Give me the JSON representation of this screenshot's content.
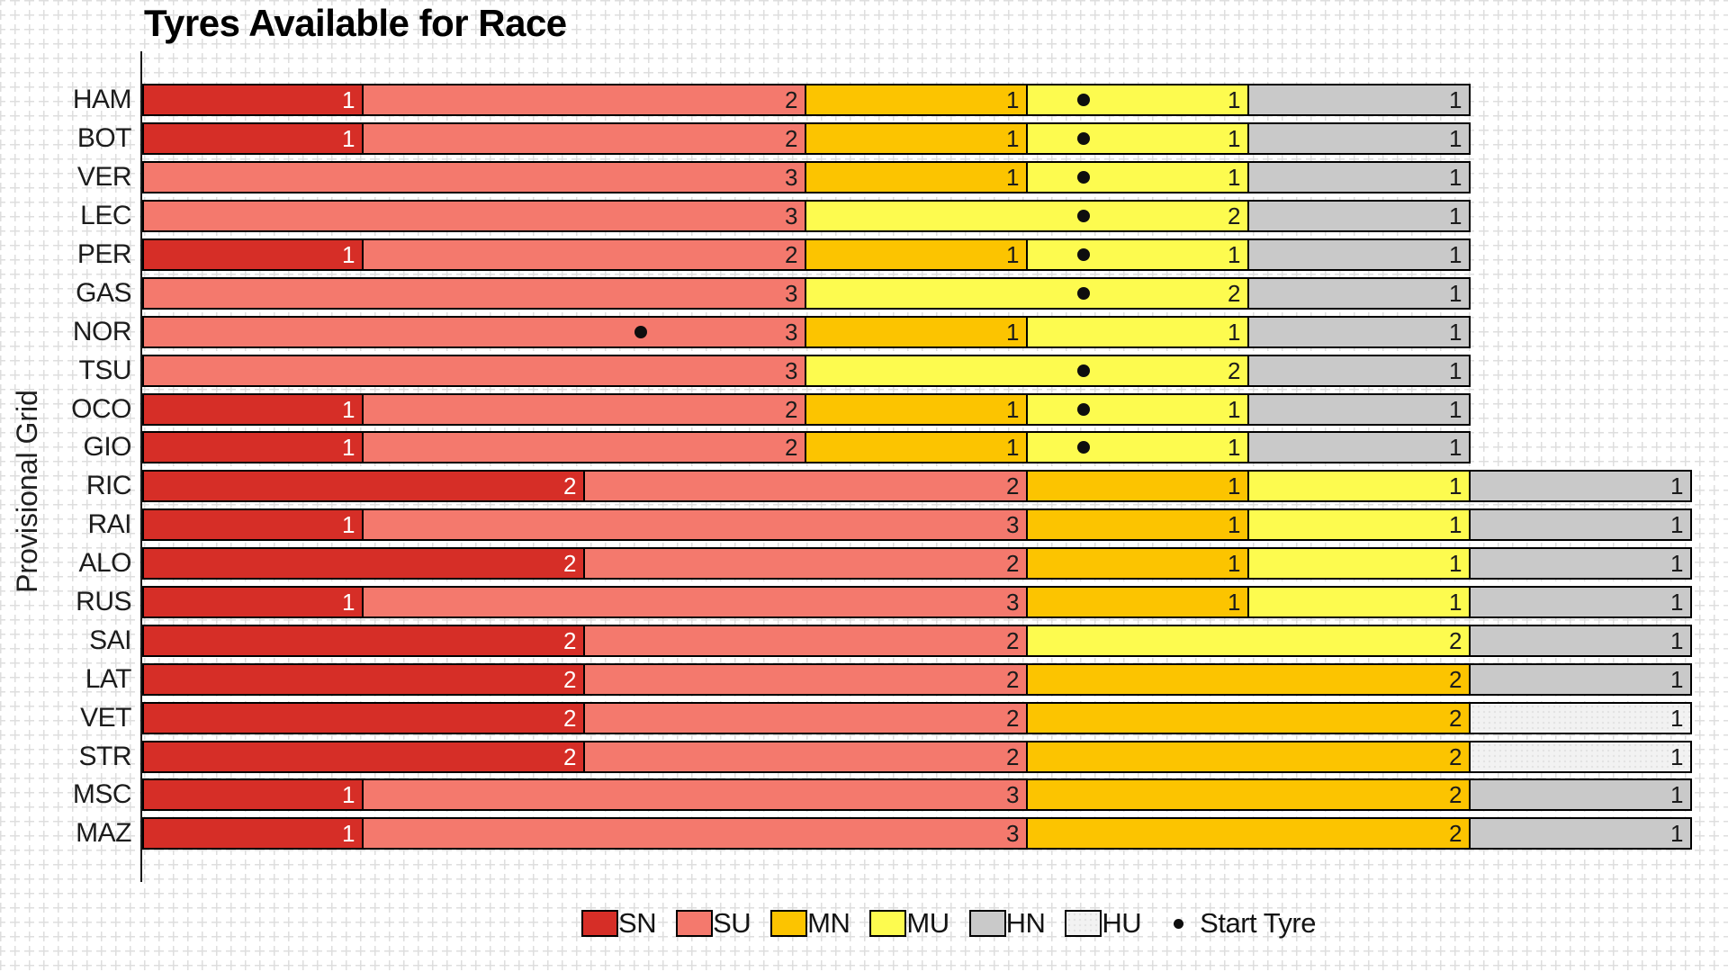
{
  "title": "Tyres Available for Race",
  "y_axis_label": "Provisional Grid",
  "legend": {
    "compound_codes": [
      "SN",
      "SU",
      "MN",
      "MU",
      "HN",
      "HU"
    ],
    "start_tyre_label": "Start Tyre"
  },
  "colors": {
    "SN": "#d62e27",
    "SU": "#f4796d",
    "MN": "#fcc400",
    "MU": "#fdfb4f",
    "HN": "#c9c9c9",
    "HU": "#f2f2f2",
    "bar_border": "#000000",
    "start_dot": "#0e0e0e",
    "grid_pattern": "#dedede"
  },
  "chart_data": {
    "type": "bar",
    "orientation": "horizontal",
    "stacked": true,
    "title": "Tyres Available for Race",
    "ylabel": "Provisional Grid",
    "x_unit": "tyre sets",
    "x_max_units": 7,
    "grid": "dashed-cross background pattern, no axis ticks",
    "legend_position": "bottom center",
    "legend_entries": [
      "SN",
      "SU",
      "MN",
      "MU",
      "HN",
      "HU",
      "Start Tyre"
    ],
    "drivers": [
      {
        "name": "HAM",
        "segments": [
          {
            "compound": "SN",
            "count": 1
          },
          {
            "compound": "SU",
            "count": 2
          },
          {
            "compound": "MN",
            "count": 1
          },
          {
            "compound": "MU",
            "count": 1
          },
          {
            "compound": "HN",
            "count": 1
          }
        ],
        "start_dot": {
          "compound": "MU",
          "x_units": 4.25
        }
      },
      {
        "name": "BOT",
        "segments": [
          {
            "compound": "SN",
            "count": 1
          },
          {
            "compound": "SU",
            "count": 2
          },
          {
            "compound": "MN",
            "count": 1
          },
          {
            "compound": "MU",
            "count": 1
          },
          {
            "compound": "HN",
            "count": 1
          }
        ],
        "start_dot": {
          "compound": "MU",
          "x_units": 4.25
        }
      },
      {
        "name": "VER",
        "segments": [
          {
            "compound": "SU",
            "count": 3
          },
          {
            "compound": "MN",
            "count": 1
          },
          {
            "compound": "MU",
            "count": 1
          },
          {
            "compound": "HN",
            "count": 1
          }
        ],
        "start_dot": {
          "compound": "MU",
          "x_units": 4.25
        }
      },
      {
        "name": "LEC",
        "segments": [
          {
            "compound": "SU",
            "count": 3
          },
          {
            "compound": "MU",
            "count": 2
          },
          {
            "compound": "HN",
            "count": 1
          }
        ],
        "start_dot": {
          "compound": "MU",
          "x_units": 4.25
        }
      },
      {
        "name": "PER",
        "segments": [
          {
            "compound": "SN",
            "count": 1
          },
          {
            "compound": "SU",
            "count": 2
          },
          {
            "compound": "MN",
            "count": 1
          },
          {
            "compound": "MU",
            "count": 1
          },
          {
            "compound": "HN",
            "count": 1
          }
        ],
        "start_dot": {
          "compound": "MU",
          "x_units": 4.25
        }
      },
      {
        "name": "GAS",
        "segments": [
          {
            "compound": "SU",
            "count": 3
          },
          {
            "compound": "MU",
            "count": 2
          },
          {
            "compound": "HN",
            "count": 1
          }
        ],
        "start_dot": {
          "compound": "MU",
          "x_units": 4.25
        }
      },
      {
        "name": "NOR",
        "segments": [
          {
            "compound": "SU",
            "count": 3
          },
          {
            "compound": "MN",
            "count": 1
          },
          {
            "compound": "MU",
            "count": 1
          },
          {
            "compound": "HN",
            "count": 1
          }
        ],
        "start_dot": {
          "compound": "SU",
          "x_units": 2.25
        }
      },
      {
        "name": "TSU",
        "segments": [
          {
            "compound": "SU",
            "count": 3
          },
          {
            "compound": "MU",
            "count": 2
          },
          {
            "compound": "HN",
            "count": 1
          }
        ],
        "start_dot": {
          "compound": "MU",
          "x_units": 4.25
        }
      },
      {
        "name": "OCO",
        "segments": [
          {
            "compound": "SN",
            "count": 1
          },
          {
            "compound": "SU",
            "count": 2
          },
          {
            "compound": "MN",
            "count": 1
          },
          {
            "compound": "MU",
            "count": 1
          },
          {
            "compound": "HN",
            "count": 1
          }
        ],
        "start_dot": {
          "compound": "MU",
          "x_units": 4.25
        }
      },
      {
        "name": "GIO",
        "segments": [
          {
            "compound": "SN",
            "count": 1
          },
          {
            "compound": "SU",
            "count": 2
          },
          {
            "compound": "MN",
            "count": 1
          },
          {
            "compound": "MU",
            "count": 1
          },
          {
            "compound": "HN",
            "count": 1
          }
        ],
        "start_dot": {
          "compound": "MU",
          "x_units": 4.25
        }
      },
      {
        "name": "RIC",
        "segments": [
          {
            "compound": "SN",
            "count": 2
          },
          {
            "compound": "SU",
            "count": 2
          },
          {
            "compound": "MN",
            "count": 1
          },
          {
            "compound": "MU",
            "count": 1
          },
          {
            "compound": "HN",
            "count": 1
          }
        ],
        "start_dot": null
      },
      {
        "name": "RAI",
        "segments": [
          {
            "compound": "SN",
            "count": 1
          },
          {
            "compound": "SU",
            "count": 3
          },
          {
            "compound": "MN",
            "count": 1
          },
          {
            "compound": "MU",
            "count": 1
          },
          {
            "compound": "HN",
            "count": 1
          }
        ],
        "start_dot": null
      },
      {
        "name": "ALO",
        "segments": [
          {
            "compound": "SN",
            "count": 2
          },
          {
            "compound": "SU",
            "count": 2
          },
          {
            "compound": "MN",
            "count": 1
          },
          {
            "compound": "MU",
            "count": 1
          },
          {
            "compound": "HN",
            "count": 1
          }
        ],
        "start_dot": null
      },
      {
        "name": "RUS",
        "segments": [
          {
            "compound": "SN",
            "count": 1
          },
          {
            "compound": "SU",
            "count": 3
          },
          {
            "compound": "MN",
            "count": 1
          },
          {
            "compound": "MU",
            "count": 1
          },
          {
            "compound": "HN",
            "count": 1
          }
        ],
        "start_dot": null
      },
      {
        "name": "SAI",
        "segments": [
          {
            "compound": "SN",
            "count": 2
          },
          {
            "compound": "SU",
            "count": 2
          },
          {
            "compound": "MU",
            "count": 2
          },
          {
            "compound": "HN",
            "count": 1
          }
        ],
        "start_dot": null
      },
      {
        "name": "LAT",
        "segments": [
          {
            "compound": "SN",
            "count": 2
          },
          {
            "compound": "SU",
            "count": 2
          },
          {
            "compound": "MN",
            "count": 2
          },
          {
            "compound": "HN",
            "count": 1
          }
        ],
        "start_dot": null
      },
      {
        "name": "VET",
        "segments": [
          {
            "compound": "SN",
            "count": 2
          },
          {
            "compound": "SU",
            "count": 2
          },
          {
            "compound": "MN",
            "count": 2
          },
          {
            "compound": "HU",
            "count": 1
          }
        ],
        "start_dot": null
      },
      {
        "name": "STR",
        "segments": [
          {
            "compound": "SN",
            "count": 2
          },
          {
            "compound": "SU",
            "count": 2
          },
          {
            "compound": "MN",
            "count": 2
          },
          {
            "compound": "HU",
            "count": 1
          }
        ],
        "start_dot": null
      },
      {
        "name": "MSC",
        "segments": [
          {
            "compound": "SN",
            "count": 1
          },
          {
            "compound": "SU",
            "count": 3
          },
          {
            "compound": "MN",
            "count": 2
          },
          {
            "compound": "HN",
            "count": 1
          }
        ],
        "start_dot": null
      },
      {
        "name": "MAZ",
        "segments": [
          {
            "compound": "SN",
            "count": 1
          },
          {
            "compound": "SU",
            "count": 3
          },
          {
            "compound": "MN",
            "count": 2
          },
          {
            "compound": "HN",
            "count": 1
          }
        ],
        "start_dot": null
      }
    ]
  }
}
